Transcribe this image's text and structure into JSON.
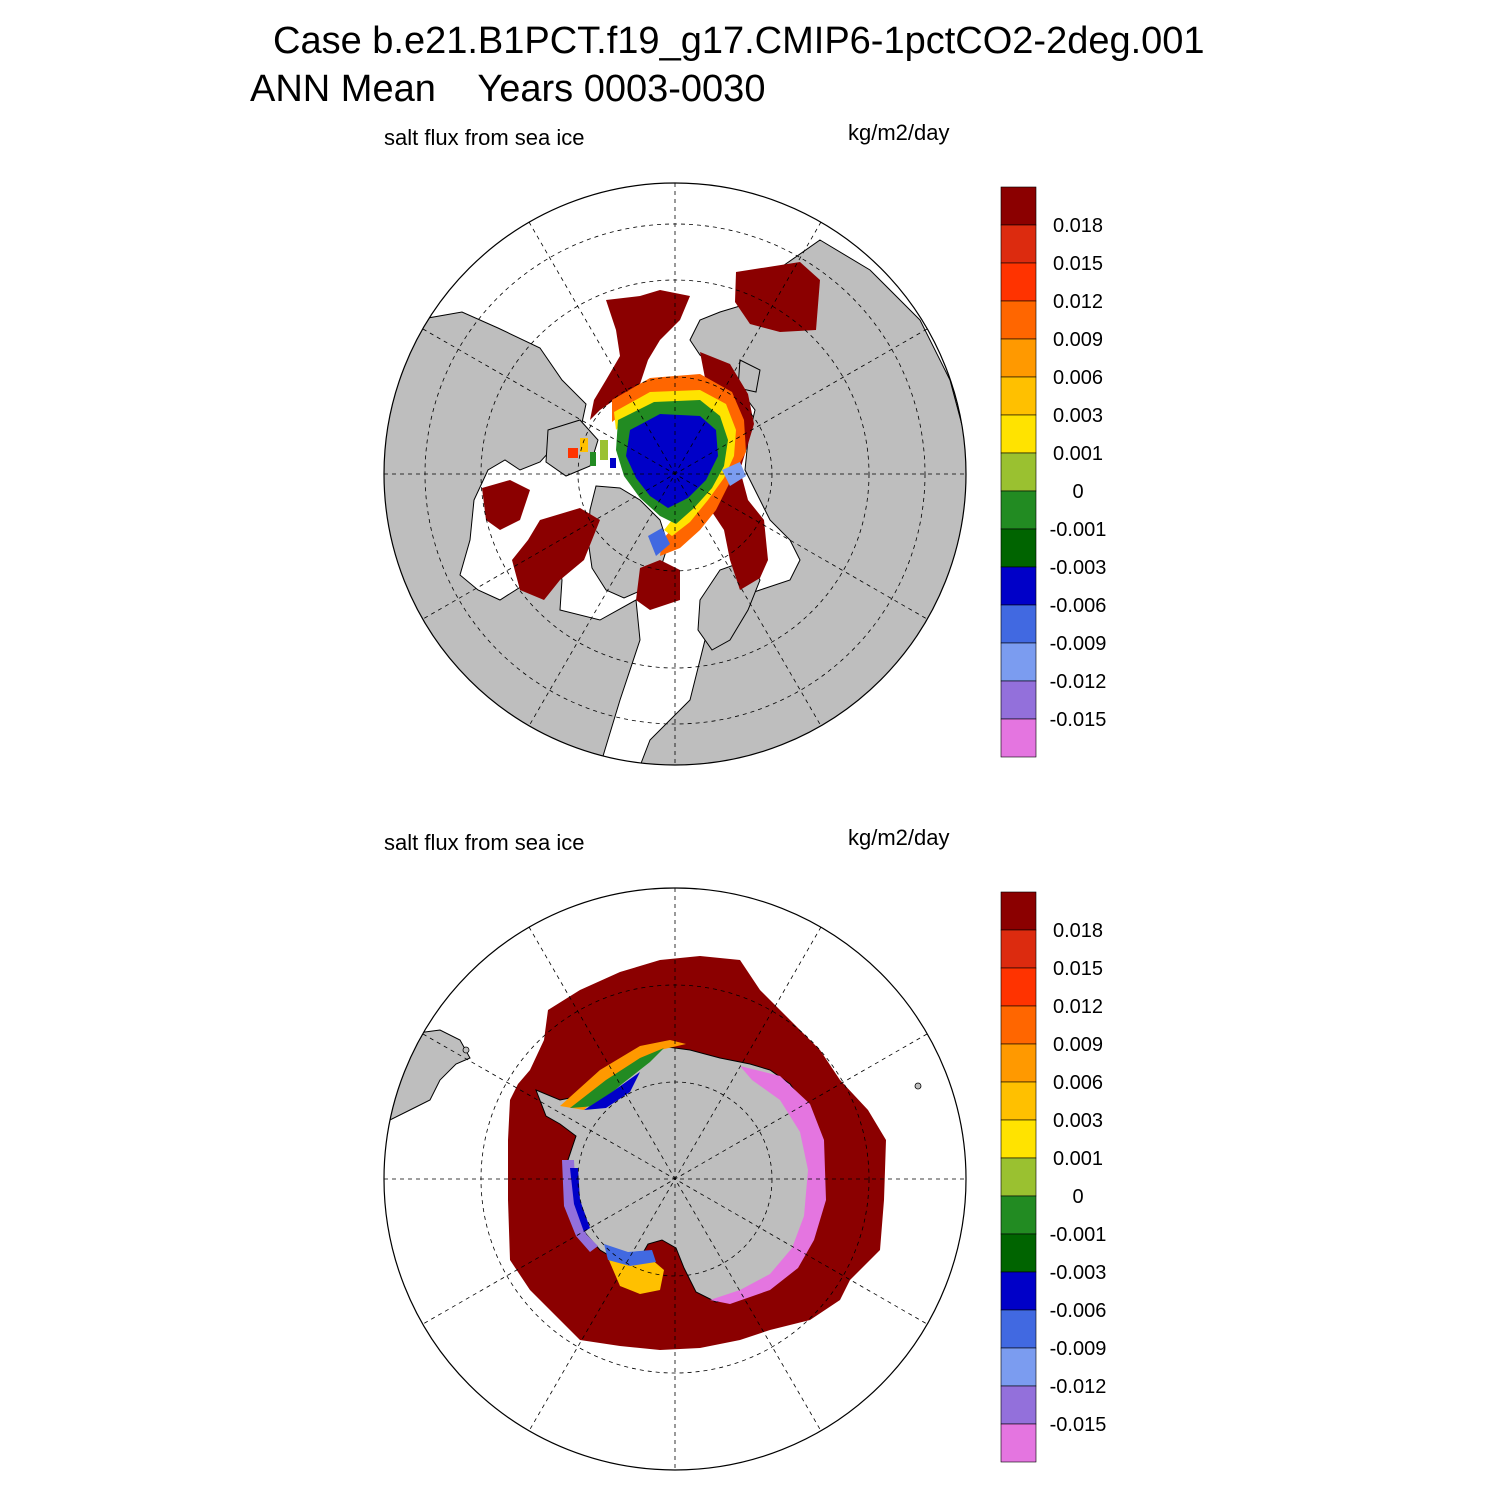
{
  "figure": {
    "title_line1": "Case b.e21.B1PCT.f19_g17.CMIP6-1pctCO2-2deg.001",
    "title_line2": "ANN Mean    Years 0003-0030"
  },
  "panels": [
    {
      "hemisphere": "north",
      "left_label": "salt flux from sea ice",
      "right_label": "kg/m2/day",
      "projection": "polar stereographic, North Pole centered"
    },
    {
      "hemisphere": "south",
      "left_label": "salt flux from sea ice",
      "right_label": "kg/m2/day",
      "projection": "polar stereographic, South Pole centered"
    }
  ],
  "colorbar": {
    "units": "kg/m2/day",
    "tick_labels": [
      "0.018",
      "0.015",
      "0.012",
      "0.009",
      "0.006",
      "0.003",
      "0.001",
      "0",
      "-0.001",
      "-0.003",
      "-0.006",
      "-0.009",
      "-0.012",
      "-0.015"
    ],
    "colors": [
      "#8b0000",
      "#dc2b0f",
      "#ff3300",
      "#ff6600",
      "#ff9900",
      "#ffc000",
      "#ffe300",
      "#9ac130",
      "#228b22",
      "#006400",
      "#0000c8",
      "#4169e1",
      "#7b9cf0",
      "#9370db",
      "#e475e0"
    ]
  },
  "style": {
    "land": "#bebebe",
    "ocean_ice_free": "#ffffff",
    "high_flux": "#8b0000"
  }
}
